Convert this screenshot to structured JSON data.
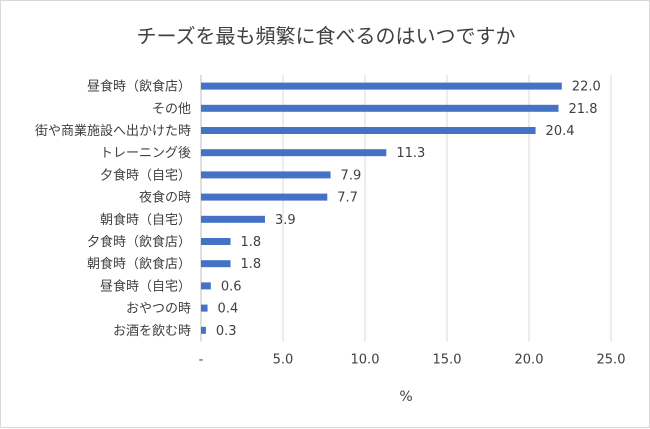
{
  "chart_data": {
    "type": "bar",
    "orientation": "horizontal",
    "title": "チーズを最も頻繁に食べるのはいつですか",
    "categories": [
      "昼食時（飲食店）",
      "その他",
      "街や商業施設へ出かけた時",
      "トレーニング後",
      "夕食時（自宅）",
      "夜食の時",
      "朝食時（自宅）",
      "夕食時（飲食店）",
      "朝食時（飲食店）",
      "昼食時（自宅）",
      "おやつの時",
      "お酒を飲む時"
    ],
    "values": [
      22.0,
      21.8,
      20.4,
      11.3,
      7.9,
      7.7,
      3.9,
      1.8,
      1.8,
      0.6,
      0.4,
      0.3
    ],
    "value_labels": [
      "22.0",
      "21.8",
      "20.4",
      "11.3",
      "7.9",
      "7.7",
      "3.9",
      "1.8",
      "1.8",
      "0.6",
      "0.4",
      "0.3"
    ],
    "xlabel": "%",
    "ylabel": "",
    "xlim": [
      0,
      25
    ],
    "xticks": [
      0,
      5,
      10,
      15,
      20,
      25
    ],
    "xtick_labels": [
      "-",
      "5.0",
      "10.0",
      "15.0",
      "20.0",
      "25.0"
    ],
    "grid": true,
    "legend": false,
    "bar_color": "#4472c4"
  }
}
